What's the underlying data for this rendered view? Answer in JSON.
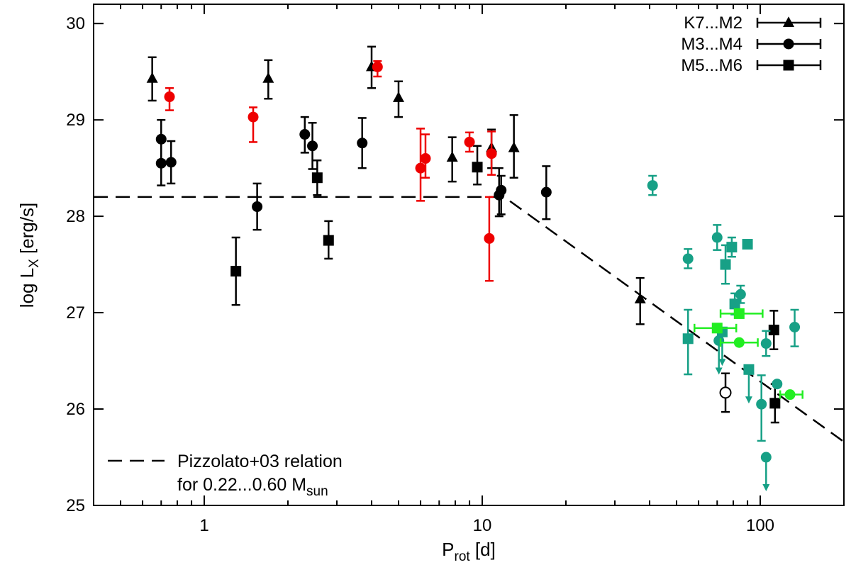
{
  "chart_data": {
    "type": "scatter",
    "xscale": "log",
    "xlim": [
      0.4,
      200
    ],
    "ylim": [
      25,
      30.2
    ],
    "xlabel": {
      "main": "P",
      "sub": "rot",
      "suffix": " [d]"
    },
    "ylabel": {
      "main": "log L",
      "sub": "X",
      "suffix": " [erg/s]"
    },
    "xticks": [
      1,
      10,
      100
    ],
    "xtick_labels": [
      "1",
      "10",
      "100"
    ],
    "yticks": [
      25,
      26,
      27,
      28,
      29,
      30
    ],
    "ytick_labels": [
      "25",
      "26",
      "27",
      "28",
      "29",
      "30"
    ],
    "legend": {
      "position": "top-right",
      "entries": [
        {
          "label": "K7...M2",
          "marker": "triangle"
        },
        {
          "label": "M3...M4",
          "marker": "circle"
        },
        {
          "label": "M5...M6",
          "marker": "square"
        }
      ]
    },
    "annotation": {
      "line1": "Pizzolato+03 relation",
      "line2_main": "for 0.22...0.60 M",
      "line2_sub": "sun"
    },
    "relation": {
      "style": "dashed",
      "points": [
        [
          0.4,
          28.2
        ],
        [
          12,
          28.2
        ],
        [
          200,
          25.66
        ]
      ]
    },
    "colors": {
      "black": "#000000",
      "red": "#ee0000",
      "teal": "#17a086",
      "green": "#22ee22"
    },
    "series": [
      {
        "name": "K7...M2",
        "marker": "triangle",
        "color": "black",
        "points": [
          {
            "x": 0.65,
            "y": 29.43,
            "ylo": 29.2,
            "yhi": 29.65
          },
          {
            "x": 1.7,
            "y": 29.43,
            "ylo": 29.22,
            "yhi": 29.62
          },
          {
            "x": 4.0,
            "y": 29.55,
            "ylo": 29.33,
            "yhi": 29.76
          },
          {
            "x": 5.0,
            "y": 29.23,
            "ylo": 29.03,
            "yhi": 29.4
          },
          {
            "x": 7.8,
            "y": 28.61,
            "ylo": 28.36,
            "yhi": 28.82
          },
          {
            "x": 10.8,
            "y": 28.71,
            "ylo": 28.5,
            "yhi": 28.9
          },
          {
            "x": 13.0,
            "y": 28.71,
            "ylo": 28.4,
            "yhi": 29.05
          },
          {
            "x": 37.0,
            "y": 27.14,
            "ylo": 26.88,
            "yhi": 27.36
          }
        ]
      },
      {
        "name": "M3...M4",
        "marker": "circle",
        "color": "black",
        "points": [
          {
            "x": 0.7,
            "y": 28.8,
            "ylo": 28.58,
            "yhi": 29.0
          },
          {
            "x": 0.7,
            "y": 28.55,
            "ylo": 28.32,
            "yhi": 28.78
          },
          {
            "x": 0.76,
            "y": 28.56,
            "ylo": 28.34,
            "yhi": 28.78
          },
          {
            "x": 1.55,
            "y": 28.1,
            "ylo": 27.86,
            "yhi": 28.34
          },
          {
            "x": 2.3,
            "y": 28.85,
            "ylo": 28.66,
            "yhi": 29.03
          },
          {
            "x": 2.45,
            "y": 28.73,
            "ylo": 28.49,
            "yhi": 28.97
          },
          {
            "x": 3.7,
            "y": 28.76,
            "ylo": 28.5,
            "yhi": 29.02
          },
          {
            "x": 11.5,
            "y": 28.22,
            "ylo": 28.0,
            "yhi": 28.5
          },
          {
            "x": 11.7,
            "y": 28.27,
            "ylo": 28.02,
            "yhi": 28.42
          },
          {
            "x": 17.0,
            "y": 28.25,
            "ylo": 27.97,
            "yhi": 28.52
          }
        ]
      },
      {
        "name": "M5...M6",
        "marker": "square",
        "color": "black",
        "points": [
          {
            "x": 1.3,
            "y": 27.43,
            "ylo": 27.08,
            "yhi": 27.78
          },
          {
            "x": 2.55,
            "y": 28.4,
            "ylo": 28.22,
            "yhi": 28.58
          },
          {
            "x": 2.8,
            "y": 27.75,
            "ylo": 27.56,
            "yhi": 27.95
          },
          {
            "x": 9.6,
            "y": 28.51,
            "ylo": 28.33,
            "yhi": 28.73
          },
          {
            "x": 112.0,
            "y": 26.82,
            "ylo": 26.62,
            "yhi": 27.02
          },
          {
            "x": 113.0,
            "y": 26.06,
            "ylo": 25.86,
            "yhi": 26.26
          }
        ]
      },
      {
        "name": "M3...M4 (red)",
        "marker": "circle",
        "color": "red",
        "points": [
          {
            "x": 0.75,
            "y": 29.24,
            "ylo": 29.1,
            "yhi": 29.33
          },
          {
            "x": 1.5,
            "y": 29.03,
            "ylo": 28.77,
            "yhi": 29.13
          },
          {
            "x": 4.2,
            "y": 29.55,
            "ylo": 29.45,
            "yhi": 29.61
          },
          {
            "x": 6.0,
            "y": 28.5,
            "ylo": 28.16,
            "yhi": 28.91
          },
          {
            "x": 6.25,
            "y": 28.6,
            "ylo": 28.4,
            "yhi": 28.85
          },
          {
            "x": 9.0,
            "y": 28.77,
            "ylo": 28.67,
            "yhi": 28.87
          },
          {
            "x": 10.8,
            "y": 28.65,
            "ylo": 28.43,
            "yhi": 28.88
          },
          {
            "x": 10.6,
            "y": 27.77,
            "ylo": 27.33,
            "yhi": 28.2
          }
        ]
      },
      {
        "name": "M3...M4 (teal)",
        "marker": "circle",
        "color": "teal",
        "points": [
          {
            "x": 41.0,
            "y": 28.32,
            "ylo": 28.22,
            "yhi": 28.42
          },
          {
            "x": 55.0,
            "y": 27.56,
            "ylo": 27.46,
            "yhi": 27.66
          },
          {
            "x": 70.0,
            "y": 27.78,
            "ylo": 27.65,
            "yhi": 27.91
          },
          {
            "x": 85.0,
            "y": 27.19,
            "ylo": 27.1,
            "yhi": 27.28
          },
          {
            "x": 71.0,
            "y": 26.71,
            "upper": true
          },
          {
            "x": 105.0,
            "y": 26.68,
            "ylo": 26.55,
            "yhi": 26.81
          },
          {
            "x": 115.0,
            "y": 26.26
          },
          {
            "x": 101.0,
            "y": 26.05,
            "ylo": 25.67,
            "yhi": 26.35
          },
          {
            "x": 105.0,
            "y": 25.5,
            "upper": true
          },
          {
            "x": 133.0,
            "y": 26.85,
            "ylo": 26.65,
            "yhi": 27.03
          }
        ]
      },
      {
        "name": "M5...M6 (teal)",
        "marker": "square",
        "color": "teal",
        "points": [
          {
            "x": 55.0,
            "y": 26.73,
            "ylo": 26.36,
            "yhi": 27.03
          },
          {
            "x": 75.0,
            "y": 27.5,
            "ylo": 27.3,
            "yhi": 27.7
          },
          {
            "x": 79.0,
            "y": 27.68,
            "ylo": 27.58,
            "yhi": 27.78
          },
          {
            "x": 90.0,
            "y": 27.71
          },
          {
            "x": 81.0,
            "y": 27.09,
            "ylo": 26.98,
            "yhi": 27.2
          },
          {
            "x": 73.0,
            "y": 26.8,
            "upper": true
          },
          {
            "x": 91.0,
            "y": 26.41,
            "upper": true
          }
        ]
      },
      {
        "name": "M3...M4 (green)",
        "marker": "circle",
        "color": "green",
        "points": [
          {
            "x": 84.0,
            "y": 26.69,
            "xlo": 72.0,
            "xhi": 98.0
          },
          {
            "x": 128.0,
            "y": 26.15,
            "xlo": 118.0,
            "xhi": 142.0
          }
        ]
      },
      {
        "name": "M5...M6 (green)",
        "marker": "square",
        "color": "green",
        "points": [
          {
            "x": 70.0,
            "y": 26.84,
            "xlo": 58.0,
            "xhi": 82.0
          },
          {
            "x": 84.0,
            "y": 26.99,
            "xlo": 72.0,
            "xhi": 102.0
          }
        ]
      },
      {
        "name": "M3...M4 (open)",
        "marker": "open-circle",
        "color": "black",
        "points": [
          {
            "x": 75.0,
            "y": 26.17,
            "ylo": 25.97,
            "yhi": 26.37
          }
        ]
      }
    ]
  }
}
